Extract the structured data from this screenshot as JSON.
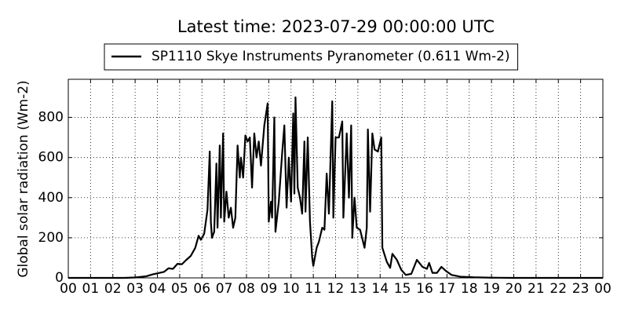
{
  "chart_data": {
    "type": "line",
    "title": "Latest time: 2023-07-29 00:00:00 UTC",
    "ylabel": "Global solar radiation (Wm-2)",
    "x": [
      0,
      2.5,
      3,
      3.5,
      3.8,
      4.1,
      4.3,
      4.5,
      4.7,
      4.9,
      5.1,
      5.3,
      5.5,
      5.7,
      5.85,
      5.95,
      6.1,
      6.25,
      6.35,
      6.4,
      6.45,
      6.55,
      6.65,
      6.7,
      6.8,
      6.85,
      6.95,
      7.0,
      7.1,
      7.2,
      7.3,
      7.4,
      7.5,
      7.6,
      7.7,
      7.75,
      7.85,
      7.95,
      8.05,
      8.15,
      8.25,
      8.35,
      8.45,
      8.55,
      8.65,
      8.8,
      8.95,
      9.0,
      9.1,
      9.15,
      9.25,
      9.3,
      9.45,
      9.6,
      9.7,
      9.8,
      9.9,
      10.0,
      10.1,
      10.15,
      10.2,
      10.3,
      10.4,
      10.5,
      10.6,
      10.65,
      10.75,
      10.85,
      10.95,
      11.0,
      11.15,
      11.25,
      11.4,
      11.5,
      11.6,
      11.7,
      11.85,
      11.9,
      12.0,
      12.15,
      12.3,
      12.35,
      12.5,
      12.6,
      12.7,
      12.75,
      12.85,
      12.95,
      13.1,
      13.3,
      13.4,
      13.45,
      13.55,
      13.65,
      13.75,
      13.9,
      14.05,
      14.1,
      14.3,
      14.45,
      14.55,
      14.75,
      14.95,
      15.15,
      15.4,
      15.65,
      15.9,
      16.1,
      16.2,
      16.35,
      16.55,
      16.75,
      16.95,
      17.2,
      17.6,
      18.2,
      19,
      20,
      24
    ],
    "series": [
      {
        "name": "SP1110 Skye Instruments Pyranometer (0.611 Wm-2)",
        "color": "#000000",
        "values": [
          0,
          0,
          2,
          8,
          18,
          25,
          30,
          48,
          45,
          70,
          68,
          90,
          110,
          150,
          210,
          190,
          220,
          340,
          630,
          280,
          200,
          230,
          570,
          250,
          660,
          300,
          720,
          280,
          430,
          300,
          350,
          250,
          300,
          660,
          500,
          600,
          500,
          710,
          680,
          700,
          450,
          720,
          600,
          680,
          560,
          760,
          870,
          280,
          380,
          300,
          800,
          230,
          380,
          620,
          760,
          350,
          600,
          380,
          820,
          420,
          900,
          450,
          400,
          320,
          680,
          330,
          700,
          280,
          100,
          60,
          150,
          180,
          250,
          240,
          520,
          320,
          880,
          300,
          700,
          700,
          780,
          300,
          720,
          400,
          760,
          200,
          400,
          250,
          240,
          150,
          250,
          740,
          330,
          720,
          640,
          630,
          700,
          150,
          80,
          50,
          120,
          90,
          40,
          15,
          20,
          90,
          55,
          45,
          75,
          25,
          25,
          55,
          35,
          15,
          6,
          3,
          1,
          0,
          0
        ]
      }
    ],
    "xlim": [
      0,
      24
    ],
    "xticks": [
      {
        "value": 0,
        "label": "00"
      },
      {
        "value": 1,
        "label": "01"
      },
      {
        "value": 2,
        "label": "02"
      },
      {
        "value": 3,
        "label": "03"
      },
      {
        "value": 4,
        "label": "04"
      },
      {
        "value": 5,
        "label": "05"
      },
      {
        "value": 6,
        "label": "06"
      },
      {
        "value": 7,
        "label": "07"
      },
      {
        "value": 8,
        "label": "08"
      },
      {
        "value": 9,
        "label": "09"
      },
      {
        "value": 10,
        "label": "10"
      },
      {
        "value": 11,
        "label": "11"
      },
      {
        "value": 12,
        "label": "12"
      },
      {
        "value": 13,
        "label": "13"
      },
      {
        "value": 14,
        "label": "14"
      },
      {
        "value": 15,
        "label": "15"
      },
      {
        "value": 16,
        "label": "16"
      },
      {
        "value": 17,
        "label": "17"
      },
      {
        "value": 18,
        "label": "18"
      },
      {
        "value": 19,
        "label": "19"
      },
      {
        "value": 20,
        "label": "20"
      },
      {
        "value": 21,
        "label": "21"
      },
      {
        "value": 22,
        "label": "22"
      },
      {
        "value": 23,
        "label": "23"
      },
      {
        "value": 24,
        "label": "00"
      }
    ],
    "ylim": [
      0,
      990
    ],
    "yticks": [
      0,
      200,
      400,
      600,
      800
    ],
    "grid": true,
    "legend": "top"
  }
}
